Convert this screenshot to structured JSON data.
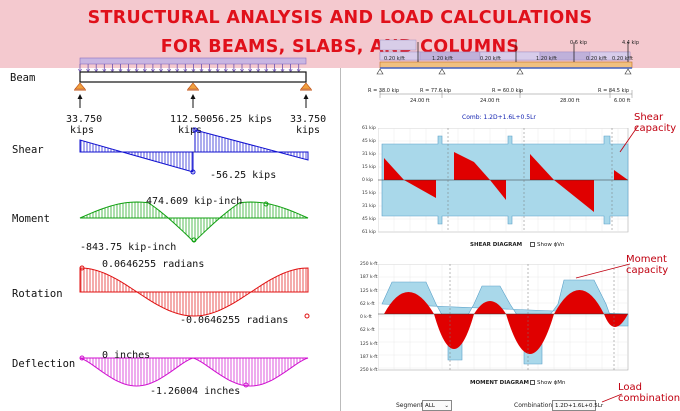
{
  "banner": {
    "line1": "STRUCTURAL ANALYSIS AND LOAD CALCULATIONS",
    "line2": "FOR BEAMS, SLABS, AND COLUMNS",
    "bg_color": "#f4c9cf",
    "text_color": "#e0101a"
  },
  "left_panel": {
    "beam_label": "Beam",
    "reactions": [
      "33.750",
      "112.500",
      "33.750"
    ],
    "reaction_units": [
      "kips",
      "kips",
      "kips"
    ],
    "shear": {
      "label": "Shear",
      "pos_value": "56.25 kips",
      "neg_value": "-56.25 kips",
      "color": "#1010d0"
    },
    "moment": {
      "label": "Moment",
      "pos_value": "474.609 kip-inch",
      "neg_value": "-843.75 kip-inch",
      "color": "#10a010"
    },
    "rotation": {
      "label": "Rotation",
      "pos_value": "0.0646255 radians",
      "neg_value": "-0.0646255 radians",
      "color": "#e01010"
    },
    "deflection": {
      "label": "Deflection",
      "zero_value": "0 inches",
      "min_value": "-1.26004 inches",
      "color": "#d010d0"
    }
  },
  "right_panel": {
    "top_loads": [
      "0.6 kip",
      "4.4 kip",
      "0.20 k/ft",
      "1.20 k/ft",
      "0.20 k/ft",
      "1.20 k/ft",
      "0.20 k/ft",
      "0.20 k/ft"
    ],
    "reactions": [
      "R = 38.0 kip",
      "R = 77.6 kip",
      "R = 60.0 kip",
      "R = 84.5 kip"
    ],
    "spans": [
      "24.00 ft",
      "24.00 ft",
      "28.00 ft",
      "6.00 ft"
    ],
    "comb_label": "Comb: 1.2D+1.6L+0.5Lr",
    "shear": {
      "title": "SHEAR DIAGRAM",
      "show_label": "Show ϕVn",
      "y_ticks": [
        "61 kip",
        "45 kip",
        "31 kip",
        "15 kip",
        "0 kip",
        "15 kip",
        "31 kip",
        "45 kip",
        "61 kip"
      ]
    },
    "moment": {
      "title": "MOMENT DIAGRAM",
      "show_label": "Show ϕMn",
      "y_ticks": [
        "250 k-ft",
        "187 k-ft",
        "125 k-ft",
        "62 k-ft",
        "0 k-ft",
        "62 k-ft",
        "125 k-ft",
        "187 k-ft",
        "250 k-ft"
      ]
    },
    "annotations": {
      "shear_capacity": [
        "Shear",
        "capacity"
      ],
      "moment_capacity": [
        "Moment",
        "capacity"
      ],
      "load_combination": [
        "Load",
        "combination"
      ]
    },
    "controls": {
      "segment_label": "Segment:",
      "segment_value": "ALL",
      "combination_label": "Combination:",
      "combination_value": "1.2D+1.6L+0.5Lr"
    },
    "capacity_color": "#a9d8ea",
    "demand_color": "#e00000"
  }
}
